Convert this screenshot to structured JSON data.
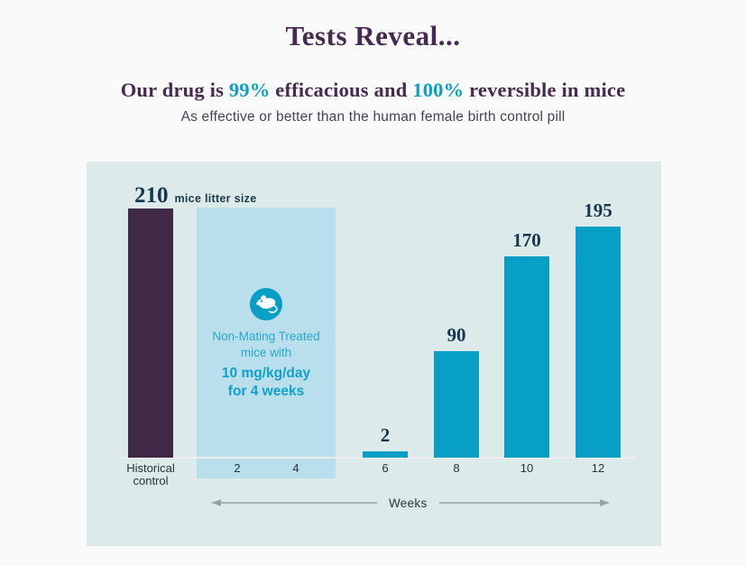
{
  "header": {
    "title": "Tests Reveal...",
    "headline": {
      "part1": "Our drug is ",
      "stat1": "99%",
      "part2": " efficacious and ",
      "stat2": "100%",
      "part3": " reversible in mice"
    },
    "tagline": "As effective or better than the human female birth control pill"
  },
  "chart": {
    "annotation": {
      "value": "210",
      "label": "mice litter size"
    },
    "treatment_box": {
      "icon": "mouse-icon",
      "line1": "Non-Mating Treated",
      "line2": "mice with",
      "line3": "10 mg/kg/day",
      "line4": "for 4 weeks"
    },
    "control_label": [
      "Historical",
      "control"
    ],
    "x_axis_label": "Weeks"
  },
  "colors": {
    "background": "#fafafa",
    "panel_bg": "#dcebea",
    "treatment_box_bg": "#b8dfeb",
    "bar_teal": "#089fc7",
    "bar_purple": "#402947",
    "title_purple": "#472a52",
    "stat_cyan": "#0a9fc7",
    "value_navy": "#16354d",
    "axis_line": "#f0eeea",
    "arrow_gray": "#99a1a5"
  },
  "chart_data": {
    "type": "bar",
    "title": "Tests Reveal...",
    "headline": "Our drug is 99% efficacious and 100% reversible in mice",
    "tagline": "As effective or better than the human female birth control pill",
    "categories": [
      "Historical control",
      "2",
      "4",
      "6",
      "8",
      "10",
      "12"
    ],
    "values": [
      210,
      null,
      null,
      2,
      90,
      170,
      195
    ],
    "bar_colors": [
      "#402947",
      null,
      null,
      "#089fc7",
      "#089fc7",
      "#089fc7",
      "#089fc7"
    ],
    "xlabel": "Weeks",
    "ylim": [
      0,
      230
    ],
    "grid": false,
    "legend": false,
    "annotations": [
      {
        "text": "210 mice litter size",
        "target": "Historical control"
      },
      {
        "text": "Non-Mating Treated mice with 10 mg/kg/day for 4 weeks",
        "target": "weeks 2-4 band"
      }
    ]
  }
}
